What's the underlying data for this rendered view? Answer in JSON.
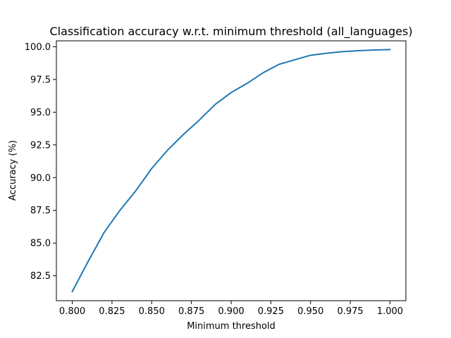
{
  "chart_data": {
    "type": "line",
    "title": "Classification accuracy w.r.t. minimum threshold (all_languages)",
    "xlabel": "Minimum threshold",
    "ylabel": "Accuracy (%)",
    "xlim": [
      0.79,
      1.01
    ],
    "ylim": [
      80.6,
      100.45
    ],
    "xticks": [
      0.8,
      0.825,
      0.85,
      0.875,
      0.9,
      0.925,
      0.95,
      0.975,
      1.0
    ],
    "xtick_labels": [
      "0.800",
      "0.825",
      "0.850",
      "0.875",
      "0.900",
      "0.925",
      "0.950",
      "0.975",
      "1.000"
    ],
    "yticks": [
      82.5,
      85.0,
      87.5,
      90.0,
      92.5,
      95.0,
      97.5,
      100.0
    ],
    "ytick_labels": [
      "82.5",
      "85.0",
      "87.5",
      "90.0",
      "92.5",
      "95.0",
      "97.5",
      "100.0"
    ],
    "grid": false,
    "series_color": "#1f77b4",
    "x": [
      0.8,
      0.81,
      0.82,
      0.83,
      0.84,
      0.85,
      0.86,
      0.87,
      0.88,
      0.89,
      0.9,
      0.91,
      0.92,
      0.93,
      0.94,
      0.95,
      0.96,
      0.97,
      0.98,
      0.99,
      1.0
    ],
    "series": [
      {
        "values": [
          81.3,
          83.6,
          85.8,
          87.5,
          89.0,
          90.7,
          92.1,
          93.3,
          94.4,
          95.6,
          96.5,
          97.2,
          98.0,
          98.65,
          99.0,
          99.35,
          99.5,
          99.62,
          99.7,
          99.75,
          99.78
        ]
      }
    ]
  }
}
